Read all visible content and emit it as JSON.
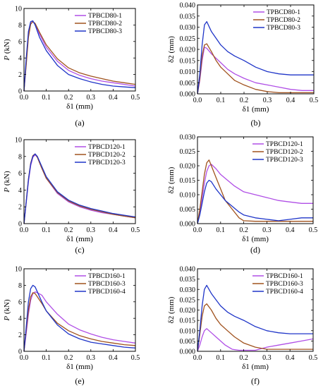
{
  "colors": {
    "purple": "#b04fe6",
    "brown": "#a0521e",
    "blue": "#1f35c8"
  },
  "chart_data": [
    {
      "type": "line",
      "label": "(a)",
      "xlabel": "δ1 (mm)",
      "ylabel": "P (kN)",
      "ylabel_italic_symbol": "P",
      "ylabel_rest": " (kN)",
      "xlim": [
        0,
        0.5
      ],
      "ylim": [
        0,
        10
      ],
      "xticks": [
        "0.0",
        "0.1",
        "0.2",
        "0.3",
        "0.4",
        "0.5"
      ],
      "yticks": [
        "0",
        "2",
        "4",
        "6",
        "8",
        "10"
      ],
      "legend": "top-right",
      "series": [
        {
          "name": "TPBCD80-1",
          "color": "#b04fe6",
          "x": [
            0,
            0.01,
            0.02,
            0.03,
            0.04,
            0.05,
            0.07,
            0.1,
            0.15,
            0.2,
            0.25,
            0.3,
            0.35,
            0.4,
            0.45,
            0.5
          ],
          "y": [
            0,
            3.5,
            6.8,
            8.2,
            8.4,
            8.1,
            6.9,
            5.3,
            3.6,
            2.5,
            1.9,
            1.5,
            1.2,
            1.0,
            0.8,
            0.6
          ]
        },
        {
          "name": "TPBCD80-2",
          "color": "#a0521e",
          "x": [
            0,
            0.01,
            0.02,
            0.03,
            0.04,
            0.05,
            0.07,
            0.1,
            0.15,
            0.2,
            0.25,
            0.3,
            0.35,
            0.4,
            0.45,
            0.5
          ],
          "y": [
            0,
            3.2,
            6.5,
            8.1,
            8.4,
            8.2,
            7.1,
            5.6,
            3.9,
            2.8,
            2.2,
            1.8,
            1.5,
            1.2,
            1.0,
            0.8
          ]
        },
        {
          "name": "TPBCD80-3",
          "color": "#1f35c8",
          "x": [
            0,
            0.01,
            0.02,
            0.03,
            0.04,
            0.05,
            0.07,
            0.1,
            0.15,
            0.2,
            0.25,
            0.3,
            0.35,
            0.4,
            0.45,
            0.5
          ],
          "y": [
            0,
            4.0,
            7.2,
            8.4,
            8.5,
            8.0,
            6.5,
            4.9,
            3.1,
            2.0,
            1.5,
            1.1,
            0.8,
            0.6,
            0.5,
            0.4
          ]
        }
      ]
    },
    {
      "type": "line",
      "label": "(b)",
      "xlabel": "δ1 (mm)",
      "ylabel": "δ2 (mm)",
      "xlim": [
        0,
        0.5
      ],
      "ylim": [
        0,
        0.04
      ],
      "xticks": [
        "0.0",
        "0.1",
        "0.2",
        "0.3",
        "0.4",
        "0.5"
      ],
      "yticks": [
        "0.000",
        "0.005",
        "0.010",
        "0.015",
        "0.020",
        "0.025",
        "0.030",
        "0.035",
        "0.040"
      ],
      "legend": "top-right",
      "series": [
        {
          "name": "TPBCD80-1",
          "color": "#b04fe6",
          "x": [
            0,
            0.01,
            0.02,
            0.03,
            0.04,
            0.06,
            0.08,
            0.1,
            0.13,
            0.16,
            0.2,
            0.25,
            0.3,
            0.35,
            0.4,
            0.45,
            0.5
          ],
          "y": [
            0,
            0.006,
            0.015,
            0.021,
            0.0205,
            0.018,
            0.016,
            0.014,
            0.011,
            0.009,
            0.007,
            0.005,
            0.004,
            0.003,
            0.002,
            0.0015,
            0.0015
          ]
        },
        {
          "name": "TPBCD80-2",
          "color": "#a0521e",
          "x": [
            0,
            0.01,
            0.02,
            0.03,
            0.04,
            0.06,
            0.08,
            0.1,
            0.13,
            0.16,
            0.2,
            0.25,
            0.3,
            0.35,
            0.4,
            0.45,
            0.5
          ],
          "y": [
            0,
            0.007,
            0.017,
            0.022,
            0.0225,
            0.019,
            0.015,
            0.012,
            0.009,
            0.006,
            0.004,
            0.002,
            0.001,
            0.0005,
            0.0005,
            0.0005,
            0.0005
          ]
        },
        {
          "name": "TPBCD80-3",
          "color": "#1f35c8",
          "x": [
            0,
            0.01,
            0.02,
            0.03,
            0.04,
            0.06,
            0.08,
            0.1,
            0.13,
            0.16,
            0.2,
            0.25,
            0.3,
            0.35,
            0.4,
            0.45,
            0.5
          ],
          "y": [
            0,
            0.009,
            0.022,
            0.031,
            0.0325,
            0.028,
            0.025,
            0.022,
            0.019,
            0.017,
            0.015,
            0.012,
            0.01,
            0.009,
            0.0085,
            0.0085,
            0.0085
          ]
        }
      ]
    },
    {
      "type": "line",
      "label": "(c)",
      "xlabel": "δ1 (mm)",
      "ylabel": "P (kN)",
      "ylabel_italic_symbol": "P",
      "ylabel_rest": " (kN)",
      "xlim": [
        0,
        0.5
      ],
      "ylim": [
        0,
        10
      ],
      "xticks": [
        "0.0",
        "0.1",
        "0.2",
        "0.3",
        "0.4",
        "0.5"
      ],
      "yticks": [
        "0",
        "2",
        "4",
        "6",
        "8",
        "10"
      ],
      "legend": "top-right",
      "series": [
        {
          "name": "TPBCD120-1",
          "color": "#b04fe6",
          "x": [
            0,
            0.01,
            0.02,
            0.03,
            0.04,
            0.05,
            0.06,
            0.08,
            0.1,
            0.15,
            0.2,
            0.25,
            0.3,
            0.35,
            0.4,
            0.45,
            0.5
          ],
          "y": [
            0,
            2.5,
            5.0,
            6.9,
            7.9,
            8.2,
            7.9,
            6.6,
            5.4,
            3.6,
            2.6,
            2.0,
            1.6,
            1.3,
            1.1,
            0.9,
            0.7
          ]
        },
        {
          "name": "TPBCD120-2",
          "color": "#a0521e",
          "x": [
            0,
            0.01,
            0.02,
            0.03,
            0.04,
            0.05,
            0.06,
            0.08,
            0.1,
            0.15,
            0.2,
            0.25,
            0.3,
            0.35,
            0.4,
            0.45,
            0.5
          ],
          "y": [
            0,
            2.7,
            5.3,
            7.2,
            8.1,
            8.3,
            7.9,
            6.6,
            5.4,
            3.7,
            2.7,
            2.1,
            1.7,
            1.4,
            1.1,
            0.9,
            0.7
          ]
        },
        {
          "name": "TPBCD120-3",
          "color": "#1f35c8",
          "x": [
            0,
            0.01,
            0.02,
            0.03,
            0.04,
            0.05,
            0.06,
            0.08,
            0.1,
            0.15,
            0.2,
            0.25,
            0.3,
            0.35,
            0.4,
            0.45,
            0.5
          ],
          "y": [
            0,
            2.6,
            5.2,
            7.1,
            8.0,
            8.3,
            8.0,
            6.8,
            5.6,
            3.8,
            2.8,
            2.2,
            1.8,
            1.5,
            1.2,
            1.0,
            0.8
          ]
        }
      ]
    },
    {
      "type": "line",
      "label": "(d)",
      "xlabel": "δ1 (mm)",
      "ylabel": "δ2 (mm)",
      "xlim": [
        0,
        0.5
      ],
      "ylim": [
        0,
        0.03
      ],
      "xticks": [
        "0.0",
        "0.1",
        "0.2",
        "0.3",
        "0.4",
        "0.5"
      ],
      "yticks": [
        "0.000",
        "0.005",
        "0.010",
        "0.015",
        "0.020",
        "0.025",
        "0.030"
      ],
      "legend": "top-right",
      "series": [
        {
          "name": "TPBCD120-1",
          "color": "#b04fe6",
          "x": [
            0,
            0.01,
            0.02,
            0.03,
            0.04,
            0.05,
            0.06,
            0.08,
            0.1,
            0.13,
            0.16,
            0.2,
            0.25,
            0.3,
            0.35,
            0.4,
            0.45,
            0.5
          ],
          "y": [
            0,
            0.004,
            0.009,
            0.014,
            0.018,
            0.02,
            0.0205,
            0.019,
            0.017,
            0.015,
            0.013,
            0.011,
            0.01,
            0.009,
            0.008,
            0.0075,
            0.007,
            0.007
          ]
        },
        {
          "name": "TPBCD120-2",
          "color": "#a0521e",
          "x": [
            0,
            0.01,
            0.02,
            0.03,
            0.04,
            0.05,
            0.06,
            0.08,
            0.1,
            0.12,
            0.15,
            0.18,
            0.2,
            0.25,
            0.3,
            0.35,
            0.4,
            0.45,
            0.5
          ],
          "y": [
            0,
            0.005,
            0.011,
            0.017,
            0.021,
            0.022,
            0.02,
            0.016,
            0.012,
            0.008,
            0.005,
            0.002,
            0.001,
            0.0008,
            0.0008,
            0.0008,
            0.0008,
            0.0008,
            0.0008
          ]
        },
        {
          "name": "TPBCD120-3",
          "color": "#1f35c8",
          "x": [
            0,
            0.01,
            0.02,
            0.03,
            0.04,
            0.05,
            0.06,
            0.08,
            0.1,
            0.12,
            0.15,
            0.18,
            0.2,
            0.25,
            0.3,
            0.35,
            0.4,
            0.45,
            0.5
          ],
          "y": [
            0,
            0.003,
            0.007,
            0.011,
            0.014,
            0.015,
            0.0145,
            0.012,
            0.01,
            0.008,
            0.006,
            0.004,
            0.003,
            0.002,
            0.0015,
            0.001,
            0.0015,
            0.002,
            0.002
          ]
        }
      ]
    },
    {
      "type": "line",
      "label": "(e)",
      "xlabel": "δ1 (mm)",
      "ylabel": "P (kN)",
      "ylabel_italic_symbol": "P",
      "ylabel_rest": " (kN)",
      "xlim": [
        0,
        0.5
      ],
      "ylim": [
        0,
        10
      ],
      "xticks": [
        "0.0",
        "0.1",
        "0.2",
        "0.3",
        "0.4",
        "0.5"
      ],
      "yticks": [
        "0",
        "2",
        "4",
        "6",
        "8",
        "10"
      ],
      "legend": "top-right",
      "series": [
        {
          "name": "TPBCD160-1",
          "color": "#b04fe6",
          "x": [
            0,
            0.01,
            0.02,
            0.03,
            0.04,
            0.05,
            0.06,
            0.08,
            0.1,
            0.15,
            0.2,
            0.25,
            0.3,
            0.35,
            0.4,
            0.45,
            0.5
          ],
          "y": [
            0,
            2.2,
            4.5,
            6.2,
            7.0,
            7.2,
            7.1,
            6.8,
            6.0,
            4.5,
            3.3,
            2.6,
            2.1,
            1.7,
            1.4,
            1.2,
            1.0
          ]
        },
        {
          "name": "TPBCD160-3",
          "color": "#a0521e",
          "x": [
            0,
            0.01,
            0.02,
            0.03,
            0.04,
            0.05,
            0.06,
            0.08,
            0.1,
            0.15,
            0.2,
            0.25,
            0.3,
            0.35,
            0.4,
            0.45,
            0.5
          ],
          "y": [
            0,
            2.6,
            5.0,
            6.6,
            7.1,
            7.0,
            6.6,
            5.8,
            4.9,
            3.4,
            2.5,
            1.9,
            1.5,
            1.2,
            1.0,
            0.8,
            0.7
          ]
        },
        {
          "name": "TPBCD160-4",
          "color": "#1f35c8",
          "x": [
            0,
            0.01,
            0.02,
            0.03,
            0.04,
            0.05,
            0.06,
            0.08,
            0.1,
            0.15,
            0.2,
            0.25,
            0.3,
            0.35,
            0.4,
            0.45,
            0.5
          ],
          "y": [
            0,
            3.0,
            6.0,
            7.6,
            8.0,
            7.8,
            7.2,
            6.0,
            4.9,
            3.2,
            2.1,
            1.5,
            1.1,
            0.9,
            0.7,
            0.5,
            0.4
          ]
        }
      ]
    },
    {
      "type": "line",
      "label": "(f)",
      "xlabel": "δ1 (mm)",
      "ylabel": "δ2 (mm)",
      "xlim": [
        0,
        0.5
      ],
      "ylim": [
        0,
        0.04
      ],
      "xticks": [
        "0.0",
        "0.1",
        "0.2",
        "0.3",
        "0.4",
        "0.5"
      ],
      "yticks": [
        "0.000",
        "0.005",
        "0.010",
        "0.015",
        "0.020",
        "0.025",
        "0.030",
        "0.035",
        "0.040"
      ],
      "legend": "top-right",
      "series": [
        {
          "name": "TPBCD160-1",
          "color": "#b04fe6",
          "x": [
            0,
            0.01,
            0.02,
            0.03,
            0.04,
            0.06,
            0.08,
            0.1,
            0.12,
            0.15,
            0.18,
            0.2,
            0.25,
            0.3,
            0.35,
            0.4,
            0.45,
            0.5
          ],
          "y": [
            0,
            0.003,
            0.007,
            0.01,
            0.011,
            0.009,
            0.007,
            0.005,
            0.003,
            0.001,
            0.0005,
            0.0005,
            0.0005,
            0.002,
            0.003,
            0.004,
            0.005,
            0.006
          ]
        },
        {
          "name": "TPBCD160-3",
          "color": "#a0521e",
          "x": [
            0,
            0.01,
            0.02,
            0.03,
            0.04,
            0.06,
            0.08,
            0.1,
            0.13,
            0.16,
            0.2,
            0.25,
            0.3,
            0.35,
            0.4,
            0.45,
            0.5
          ],
          "y": [
            0,
            0.008,
            0.017,
            0.022,
            0.023,
            0.02,
            0.016,
            0.013,
            0.01,
            0.007,
            0.004,
            0.002,
            0.001,
            0.001,
            0.001,
            0.001,
            0.001
          ]
        },
        {
          "name": "TPBCD160-4",
          "color": "#1f35c8",
          "x": [
            0,
            0.01,
            0.02,
            0.03,
            0.04,
            0.06,
            0.08,
            0.1,
            0.13,
            0.16,
            0.2,
            0.25,
            0.3,
            0.35,
            0.4,
            0.45,
            0.5
          ],
          "y": [
            0,
            0.01,
            0.022,
            0.03,
            0.032,
            0.028,
            0.025,
            0.022,
            0.019,
            0.017,
            0.015,
            0.012,
            0.01,
            0.009,
            0.0085,
            0.0085,
            0.0085
          ]
        }
      ]
    }
  ]
}
